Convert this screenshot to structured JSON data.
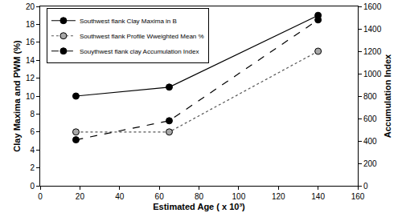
{
  "chart_data": {
    "type": "line",
    "x_label": "Estimated Age ( x 10³)",
    "y_label": "Clay Maxima and PWM (%)",
    "y2_label": "Accumulation Index",
    "xlim": [
      0,
      160
    ],
    "xticks": [
      0,
      20,
      40,
      60,
      80,
      100,
      120,
      140,
      160
    ],
    "ylim": [
      0,
      20
    ],
    "yticks": [
      0,
      2,
      4,
      6,
      8,
      10,
      12,
      14,
      16,
      18,
      20
    ],
    "y2lim": [
      0,
      1600
    ],
    "y2ticks": [
      0,
      200,
      400,
      600,
      800,
      1000,
      1200,
      1400,
      1600
    ],
    "grid": false,
    "legend": "upper left",
    "x": [
      18,
      65,
      140
    ],
    "series": [
      {
        "name": "Southwest flank Clay Maxima in B",
        "color": "#000000",
        "marker": "circle",
        "line_style": "solid",
        "values": [
          10,
          11,
          19
        ]
      },
      {
        "name": "Southwest flank Profile Wweighted Mean %",
        "color": "#a8a8a8",
        "marker": "circle",
        "line_style": "dot",
        "values": [
          6,
          6,
          15
        ]
      },
      {
        "name": "Souythwest flank clay Accumulation Index",
        "color": "#000000",
        "marker": "circle",
        "line_style": "dash",
        "axis": "y2",
        "values": [
          410,
          580,
          1480
        ]
      }
    ]
  }
}
